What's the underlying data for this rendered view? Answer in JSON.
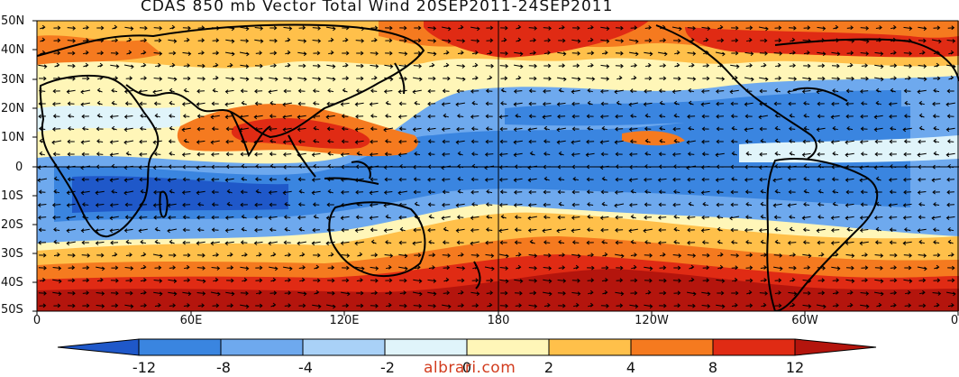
{
  "title": "CDAS 850 mb Vector Total Wind 20SEP2011-24SEP2011",
  "latitude_labels": [
    "50N",
    "40N",
    "30N",
    "20N",
    "10N",
    "0",
    "10S",
    "20S",
    "30S",
    "40S",
    "50S"
  ],
  "longitude_labels": [
    "0",
    "60E",
    "120E",
    "180",
    "120W",
    "60W",
    "0"
  ],
  "colorbar": {
    "ticks": [
      "-12",
      "-8",
      "-4",
      "-2",
      "0",
      "2",
      "4",
      "8",
      "12"
    ],
    "colors": [
      "#1f58c9",
      "#3a85e0",
      "#6ea9ee",
      "#a9d1f7",
      "#e0f4fa",
      "#fff6b8",
      "#ffc04a",
      "#f57a1f",
      "#e02b14",
      "#b4150d"
    ]
  },
  "map": {
    "field": "850 mb total wind (zonal component shading), vector arrows",
    "extent": {
      "lon": [
        0,
        360
      ],
      "lat": [
        -50,
        50
      ]
    },
    "dominant_bands": [
      {
        "region": "southern mid-latitude westerlies",
        "lat": [
          -50,
          -30
        ],
        "class": "strong positive"
      },
      {
        "region": "northern mid-latitude westerlies",
        "lat": [
          30,
          50
        ],
        "class": "positive"
      },
      {
        "region": "tropical easterlies",
        "lat": [
          -25,
          25
        ],
        "class": "negative"
      },
      {
        "region": "Indian monsoon westerlies",
        "lat": [
          5,
          20
        ],
        "lon": [
          40,
          140
        ],
        "class": "positive"
      }
    ]
  },
  "watermark": "albrari.com"
}
